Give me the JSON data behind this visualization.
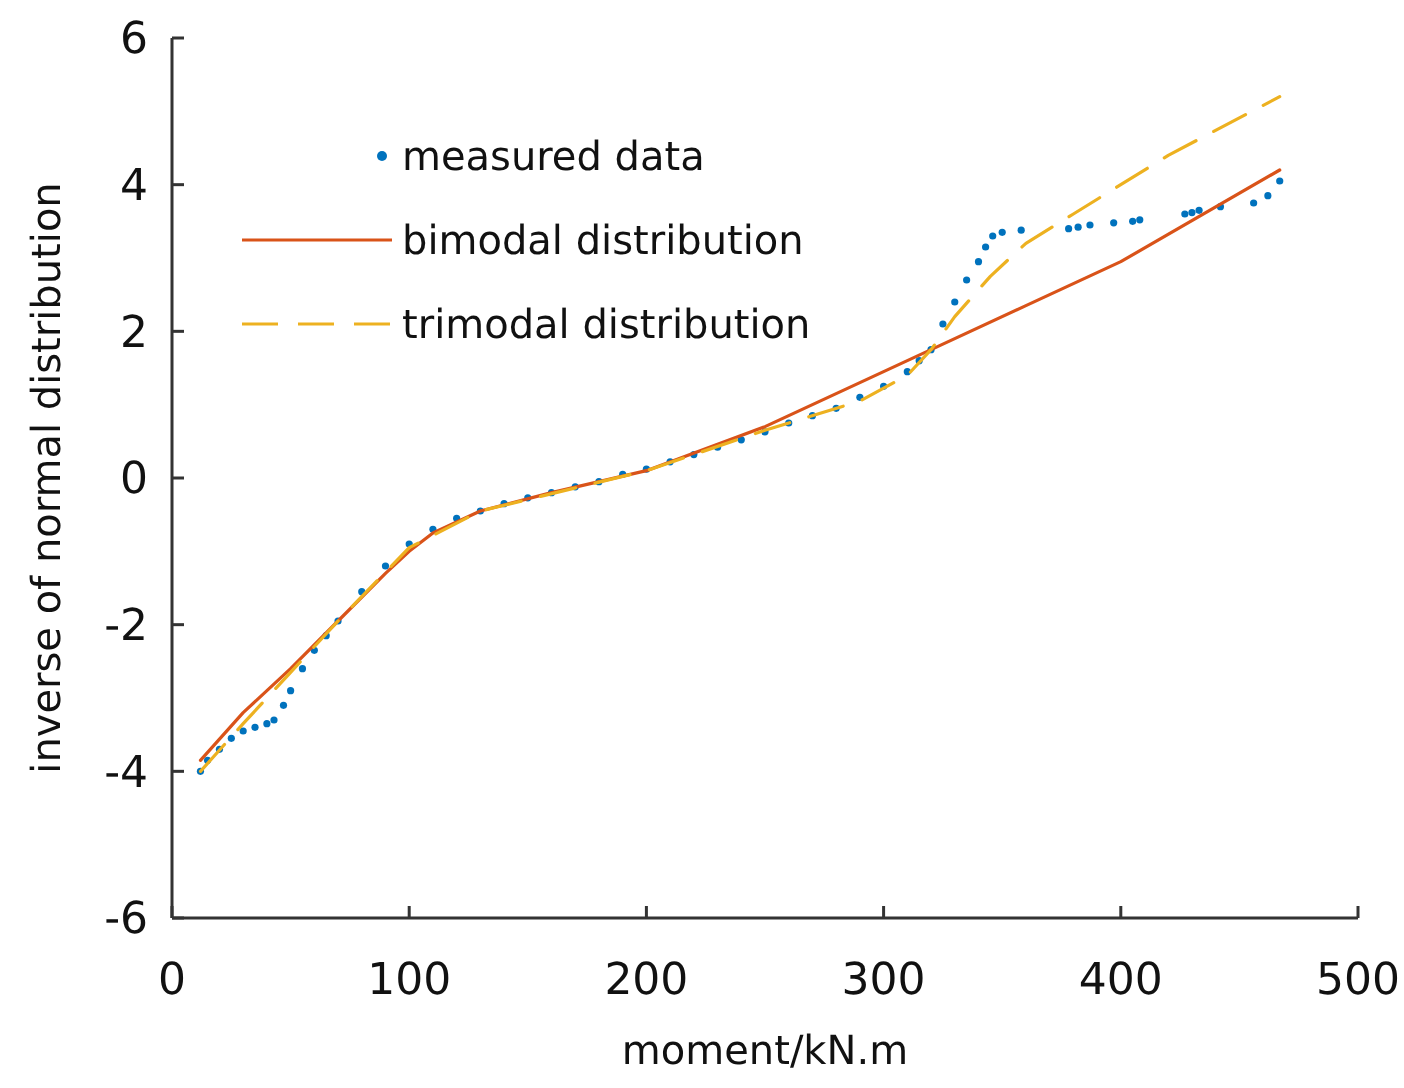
{
  "chart_data": {
    "type": "scatter",
    "xlabel": "moment/kN.m",
    "ylabel": "inverse of normal distribution",
    "xlim": [
      0,
      500
    ],
    "xticks": [
      0,
      100,
      200,
      300,
      400,
      500
    ],
    "ylim": [
      -6,
      6
    ],
    "yticks": [
      -6,
      -4,
      -2,
      0,
      2,
      4,
      6
    ],
    "grid": false,
    "legend": "top left",
    "series": [
      {
        "name": "measured data",
        "marker": "circle",
        "color": "#0072bd",
        "x": [
          12,
          15,
          20,
          25,
          30,
          35,
          40,
          43,
          47,
          50,
          55,
          60,
          65,
          70,
          80,
          90,
          100,
          110,
          120,
          130,
          140,
          150,
          160,
          170,
          180,
          190,
          200,
          210,
          220,
          230,
          240,
          250,
          260,
          270,
          280,
          290,
          300,
          310,
          315,
          320,
          325,
          330,
          335,
          340,
          343,
          346,
          350,
          358,
          378,
          382,
          387,
          397,
          405,
          408,
          427,
          430,
          433,
          442,
          456,
          462,
          467
        ],
        "values": [
          -4.0,
          -3.85,
          -3.7,
          -3.55,
          -3.45,
          -3.4,
          -3.35,
          -3.3,
          -3.1,
          -2.9,
          -2.6,
          -2.35,
          -2.15,
          -1.95,
          -1.55,
          -1.2,
          -0.9,
          -0.7,
          -0.55,
          -0.45,
          -0.35,
          -0.27,
          -0.2,
          -0.12,
          -0.05,
          0.05,
          0.12,
          0.22,
          0.32,
          0.42,
          0.52,
          0.63,
          0.75,
          0.85,
          0.95,
          1.1,
          1.25,
          1.45,
          1.6,
          1.75,
          2.1,
          2.4,
          2.7,
          2.95,
          3.15,
          3.3,
          3.35,
          3.38,
          3.4,
          3.42,
          3.45,
          3.48,
          3.5,
          3.52,
          3.6,
          3.62,
          3.65,
          3.7,
          3.75,
          3.85,
          4.05
        ]
      },
      {
        "name": "bimodal distribution",
        "type": "line",
        "marker": "none",
        "line_style": "solid",
        "color": "#d95319",
        "x": [
          12,
          30,
          50,
          70,
          90,
          100,
          110,
          130,
          160,
          200,
          250,
          300,
          320,
          360,
          400,
          467
        ],
        "values": [
          -3.85,
          -3.2,
          -2.6,
          -1.95,
          -1.3,
          -1.0,
          -0.75,
          -0.45,
          -0.2,
          0.1,
          0.7,
          1.45,
          1.75,
          2.35,
          2.95,
          4.2
        ]
      },
      {
        "name": "trimodal distribution",
        "type": "line",
        "marker": "none",
        "line_style": "dashed",
        "color": "#edb120",
        "x": [
          12,
          30,
          50,
          70,
          100,
          130,
          200,
          250,
          290,
          310,
          320,
          330,
          345,
          360,
          380,
          420,
          467
        ],
        "values": [
          -4.0,
          -3.35,
          -2.65,
          -1.95,
          -0.95,
          -0.45,
          0.1,
          0.65,
          1.05,
          1.4,
          1.75,
          2.2,
          2.75,
          3.2,
          3.6,
          4.4,
          5.2
        ]
      }
    ]
  }
}
